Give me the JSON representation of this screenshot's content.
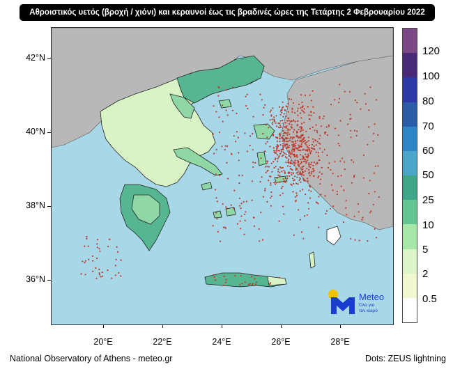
{
  "title": "Αθροιστικός υετός (βροχή / χιόνι) και κεραυνοί έως τις βραδινές ώρες της Τετάρτης 2 Φεβρουαρίου 2022",
  "lat_labels": [
    "42°N",
    "40°N",
    "38°N",
    "36°N"
  ],
  "lon_labels": [
    "20°E",
    "22°E",
    "24°E",
    "26°E",
    "28°E"
  ],
  "colorbar": {
    "labels": [
      "120",
      "100",
      "80",
      "70",
      "60",
      "50",
      "25",
      "10",
      "5",
      "2",
      "0.5"
    ],
    "colors": [
      "#7b4a86",
      "#4a2a77",
      "#2b3aa6",
      "#2a5ca8",
      "#2e86c8",
      "#4aa6c8",
      "#3fa68a",
      "#62c491",
      "#a6e7a8",
      "#dcf5c8",
      "#f1f7cf",
      "#ffffff"
    ]
  },
  "colors": {
    "sea": "#a8d8e8",
    "land": "#b8b8b8",
    "precip_light": "#d8f3c4",
    "precip_mid": "#8fd8a6",
    "precip_heavy": "#55b691",
    "lightning": "#c0392b"
  },
  "logo": {
    "brand": "Meteo",
    "tagline_1": "Όλα για",
    "tagline_2": "τον καιρό"
  },
  "footer": {
    "left": "National Observatory of Athens - meteo.gr",
    "right": "Dots: ZEUS lightning"
  }
}
